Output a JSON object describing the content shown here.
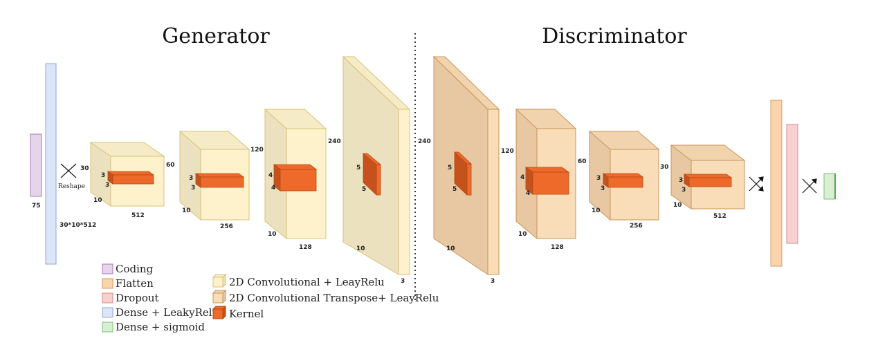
{
  "titles": {
    "generator": "Generator",
    "discriminator": "Discriminator"
  },
  "labels": {
    "coding_dim": "75",
    "dense_dim": "30*10*512",
    "reshape": "Reshape"
  },
  "generator": {
    "b1": {
      "top": "30",
      "right": "60",
      "bottom": "10",
      "depth": "512",
      "k1": "3",
      "k2": "3"
    },
    "b2": {
      "top": "120",
      "bottom": "10",
      "depth": "256",
      "k1": "3",
      "k2": "3"
    },
    "b3": {
      "top": "240",
      "bottom": "10",
      "depth": "128",
      "k1": "4",
      "k2": "4"
    },
    "b4": {
      "bottom": "10",
      "depth": "3",
      "k1": "5",
      "k2": "5"
    }
  },
  "discriminator": {
    "b1": {
      "left": "240",
      "top": "120",
      "bottom": "10",
      "depth": "3",
      "k1": "5",
      "k2": "5"
    },
    "b2": {
      "top": "60",
      "bottom": "10",
      "depth": "128",
      "k1": "4",
      "k2": "4"
    },
    "b3": {
      "top": "30",
      "bottom": "10",
      "depth": "256",
      "k1": "3",
      "k2": "3"
    },
    "b4": {
      "bottom": "10",
      "depth": "512",
      "k1": "3",
      "k2": "3"
    }
  },
  "legend": {
    "coding": "Coding",
    "flatten": "Flatten",
    "dropout": "Dropout",
    "dense_leaky": "Dense + LeakyRelu",
    "dense_sigmoid": "Dense + sigmoid",
    "conv": "2D Convolutional + LeayRelu",
    "conv_t": "2D Convolutional Transpose+ LeayRelu",
    "kernel": "Kernel"
  },
  "colors": {
    "coding": "#e6d5ea",
    "flatten": "#fad4ad",
    "dropout": "#f9d0d0",
    "dense": "#dbe5f8",
    "sigmoid": "#d9efd4",
    "conv_front": "#fdf2cc",
    "conv_side": "#ece1be",
    "conv_t_front": "#f9dcb8",
    "conv_t_side": "#e8c7a3",
    "kernel": "#ee6a2b",
    "kernel_side": "#c5521c"
  }
}
